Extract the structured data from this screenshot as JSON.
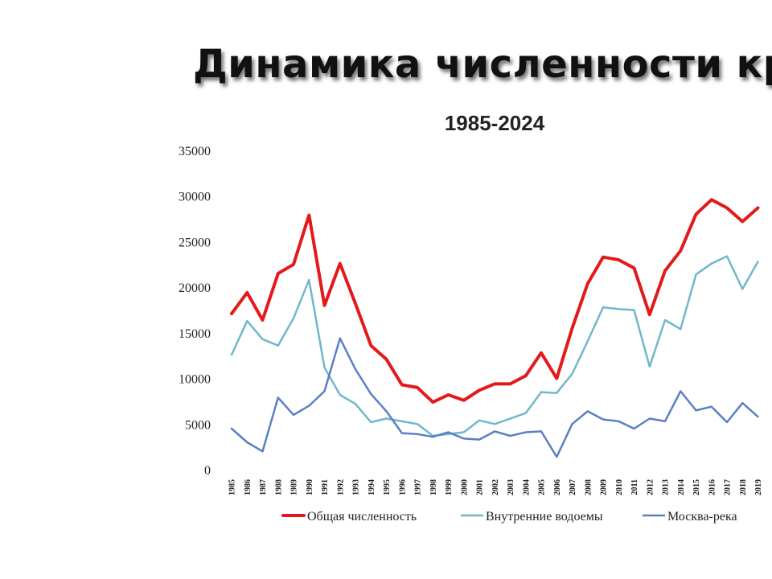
{
  "slide": {
    "title": "Динамика численности кряквы",
    "subtitle": "1985-2024"
  },
  "chart_data": {
    "type": "line",
    "title": "1985-2024",
    "x": [
      "1985",
      "1986",
      "1987",
      "1988",
      "1989",
      "1990",
      "1991",
      "1992",
      "1993",
      "1994",
      "1995",
      "1996",
      "1997",
      "1998",
      "1999",
      "2000",
      "2001",
      "2002",
      "2003",
      "2004",
      "2005",
      "2006",
      "2007",
      "2008",
      "2009",
      "2010",
      "2011",
      "2012",
      "2013",
      "2014",
      "2015",
      "2016",
      "2017",
      "2018",
      "2019"
    ],
    "ylim": [
      0,
      35000
    ],
    "yticks": [
      0,
      5000,
      10000,
      15000,
      20000,
      25000,
      30000,
      35000
    ],
    "grid": false,
    "legend_position": "bottom",
    "series": [
      {
        "name": "Общая численность",
        "color": "#e31a1c",
        "values": [
          17100,
          19400,
          16400,
          21500,
          22500,
          27900,
          18000,
          22600,
          18200,
          13600,
          12100,
          9300,
          9000,
          7400,
          8200,
          7600,
          8700,
          9400,
          9400,
          10300,
          12800,
          10000,
          15500,
          20400,
          23300,
          23000,
          22100,
          17000,
          21800,
          24000,
          28000,
          29600,
          28700,
          27200,
          28700
        ]
      },
      {
        "name": "Внутренние водоемы",
        "color": "#6fb8c9",
        "values": [
          12600,
          16300,
          14300,
          13600,
          16600,
          20800,
          11200,
          8200,
          7200,
          5200,
          5600,
          5300,
          5000,
          3700,
          3900,
          4100,
          5400,
          5000,
          5600,
          6200,
          8500,
          8400,
          10500,
          14100,
          17800,
          17600,
          17500,
          11300,
          16400,
          15400,
          21400,
          22600,
          23400,
          19800,
          22800
        ]
      },
      {
        "name": "Москва-река",
        "color": "#5b7fc4",
        "values": [
          4500,
          3000,
          2000,
          7900,
          6000,
          7000,
          8600,
          14400,
          11000,
          8300,
          6400,
          4000,
          3900,
          3600,
          4100,
          3400,
          3300,
          4200,
          3700,
          4100,
          4200,
          1400,
          5000,
          6400,
          5500,
          5300,
          4500,
          5600,
          5300,
          8600,
          6500,
          6900,
          5200,
          7300,
          5800
        ]
      }
    ]
  }
}
